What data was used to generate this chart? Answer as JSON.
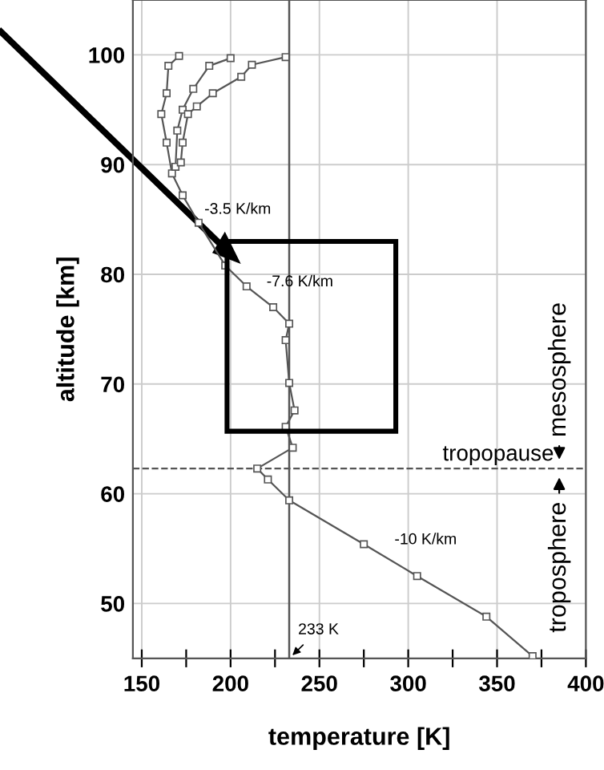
{
  "chart_data": {
    "type": "line",
    "xlabel": "temperature [K]",
    "ylabel": "altitude [km]",
    "xlim": [
      145,
      400
    ],
    "ylim": [
      45,
      105
    ],
    "xticks": [
      150,
      {
        "value": 175,
        "label": null
      },
      200,
      {
        "value": 225,
        "label": null
      },
      250,
      {
        "value": 275,
        "label": null
      },
      300,
      {
        "value": 325,
        "label": null
      },
      350,
      {
        "value": 375,
        "label": null
      },
      400
    ],
    "yticks": [
      50,
      60,
      70,
      80,
      90,
      100
    ],
    "grid": true,
    "marker": "square",
    "line_style": "solid",
    "series": [
      {
        "color": "#555555",
        "x": [
          370,
          344,
          305,
          275,
          233,
          221,
          215,
          235,
          231,
          236,
          233,
          231,
          233,
          224,
          209,
          197,
          182,
          173,
          167,
          164,
          161,
          164,
          165,
          171
        ],
        "values": [
          45.2,
          48.8,
          52.5,
          55.4,
          59.4,
          61.3,
          62.3,
          64.2,
          66.1,
          67.6,
          70.1,
          74,
          75.5,
          77,
          78.9,
          80.8,
          84.7,
          87.2,
          89.2,
          92,
          94.6,
          96.5,
          99,
          99.9
        ]
      },
      {
        "color": "#555555",
        "x": [
          169,
          170,
          173,
          179,
          188,
          200
        ],
        "values": [
          89.8,
          93.1,
          95,
          96.9,
          99,
          99.7
        ]
      },
      {
        "color": "#555555",
        "x": [
          172,
          173,
          176,
          181,
          190,
          206,
          212,
          231
        ],
        "values": [
          90.2,
          92,
          94.6,
          95.3,
          96.5,
          98,
          99.1,
          99.8
        ]
      }
    ],
    "ref_lines": [
      {
        "axis": "x",
        "value": 233,
        "color": "#555555",
        "line_style": "solid"
      },
      {
        "axis": "y",
        "value": 62.3,
        "label": "tropopause",
        "color": "#555555",
        "line_style": "dashed"
      }
    ],
    "annotations": [
      {
        "text": "-3.5 K/km",
        "x": 184,
        "y": 84.2
      },
      {
        "text": "-7.6 K/km",
        "x": 219,
        "y": 77.6
      },
      {
        "text": "-10 K/km",
        "x": 291,
        "y": 54.1
      },
      {
        "text": "233 K",
        "x": 233,
        "y": 45
      },
      "mesosphere",
      "troposphere"
    ]
  }
}
